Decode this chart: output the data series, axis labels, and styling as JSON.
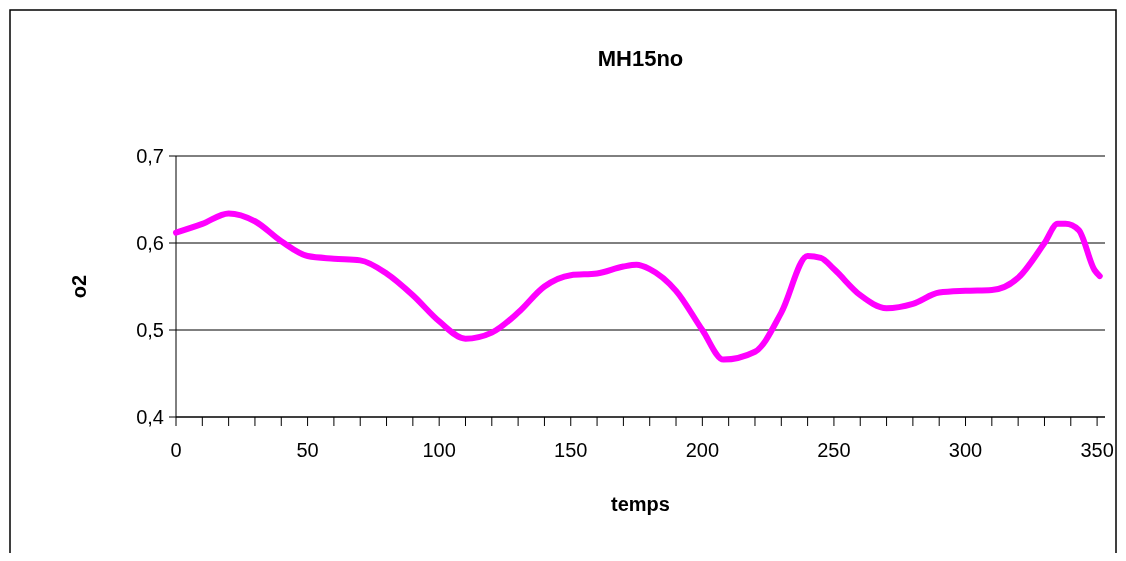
{
  "chart_data": {
    "type": "line",
    "title": "MH15no",
    "xlabel": "temps",
    "ylabel": "o2",
    "xlim": [
      0,
      353
    ],
    "ylim": [
      0.4,
      0.7
    ],
    "xticks": [
      0,
      {
        "value": 10,
        "label": null
      },
      {
        "value": 20,
        "label": null
      },
      {
        "value": 30,
        "label": null
      },
      {
        "value": 40,
        "label": null
      },
      50,
      {
        "value": 60,
        "label": null
      },
      {
        "value": 70,
        "label": null
      },
      {
        "value": 80,
        "label": null
      },
      {
        "value": 90,
        "label": null
      },
      100,
      {
        "value": 110,
        "label": null
      },
      {
        "value": 120,
        "label": null
      },
      {
        "value": 130,
        "label": null
      },
      {
        "value": 140,
        "label": null
      },
      150,
      {
        "value": 160,
        "label": null
      },
      {
        "value": 170,
        "label": null
      },
      {
        "value": 180,
        "label": null
      },
      {
        "value": 190,
        "label": null
      },
      200,
      {
        "value": 210,
        "label": null
      },
      {
        "value": 220,
        "label": null
      },
      {
        "value": 230,
        "label": null
      },
      {
        "value": 240,
        "label": null
      },
      250,
      {
        "value": 260,
        "label": null
      },
      {
        "value": 270,
        "label": null
      },
      {
        "value": 280,
        "label": null
      },
      {
        "value": 290,
        "label": null
      },
      300,
      {
        "value": 310,
        "label": null
      },
      {
        "value": 320,
        "label": null
      },
      {
        "value": 330,
        "label": null
      },
      {
        "value": 340,
        "label": null
      },
      350
    ],
    "yticks": [
      {
        "value": 0.4,
        "label": "0,4"
      },
      {
        "value": 0.5,
        "label": "0,5"
      },
      {
        "value": 0.6,
        "label": "0,6"
      },
      {
        "value": 0.7,
        "label": "0,7"
      }
    ],
    "grid": "y",
    "marker": "none",
    "line_style": "solid",
    "x": [
      0,
      10,
      20,
      30,
      40,
      50,
      60,
      70,
      80,
      90,
      100,
      110,
      120,
      130,
      140,
      150,
      160,
      170,
      175,
      180,
      190,
      200,
      208,
      220,
      230,
      240,
      245,
      250,
      260,
      270,
      280,
      290,
      300,
      310,
      320,
      330,
      335,
      338,
      343,
      349,
      351
    ],
    "series": [
      {
        "color": "#ff00ff",
        "values": [
          0.612,
          0.622,
          0.634,
          0.625,
          0.602,
          0.585,
          0.582,
          0.58,
          0.565,
          0.54,
          0.51,
          0.49,
          0.497,
          0.52,
          0.55,
          0.563,
          0.565,
          0.573,
          0.575,
          0.57,
          0.545,
          0.5,
          0.466,
          0.475,
          0.52,
          0.585,
          0.583,
          0.57,
          0.54,
          0.525,
          0.53,
          0.543,
          0.545,
          0.546,
          0.56,
          0.6,
          0.622,
          0.622,
          0.615,
          0.569,
          0.562
        ]
      }
    ]
  }
}
